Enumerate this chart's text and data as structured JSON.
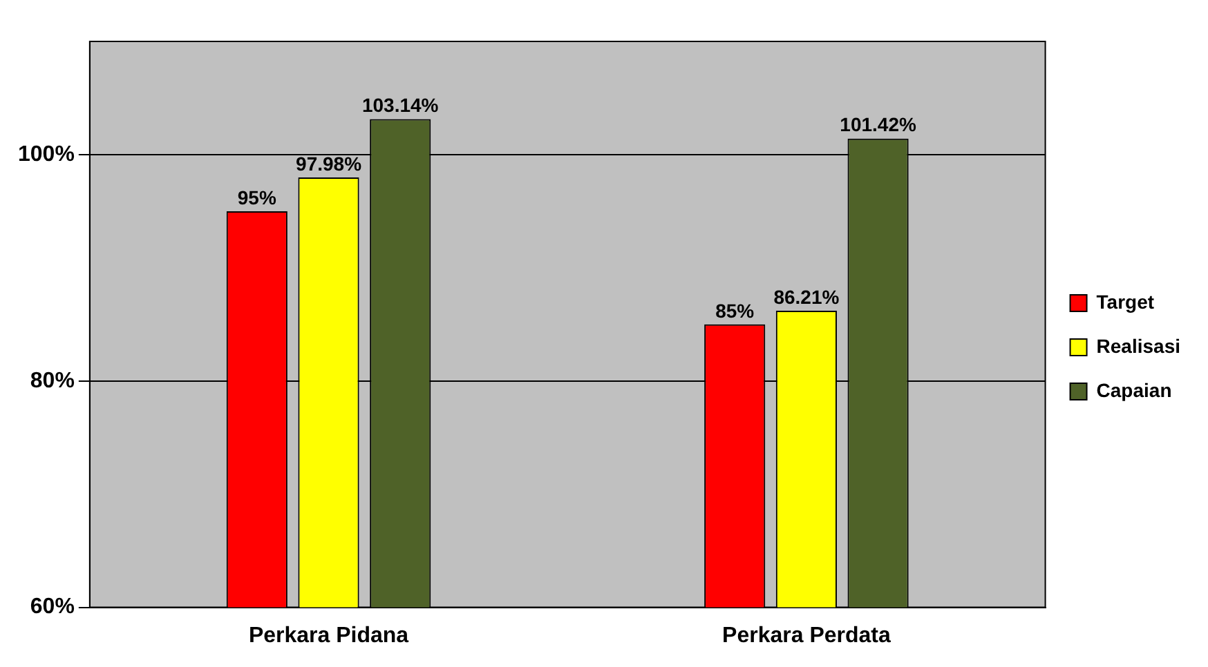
{
  "chart_data": {
    "type": "bar",
    "categories": [
      "Perkara Pidana",
      "Perkara Perdata"
    ],
    "series": [
      {
        "name": "Target",
        "color": "#ff0000",
        "values": [
          95,
          85
        ],
        "value_labels": [
          "95%",
          "85%"
        ]
      },
      {
        "name": "Realisasi",
        "color": "#ffff00",
        "values": [
          97.98,
          86.21
        ],
        "value_labels": [
          "97.98%",
          "86.21%"
        ]
      },
      {
        "name": "Capaian",
        "color": "#4f6228",
        "values": [
          103.14,
          101.42
        ],
        "value_labels": [
          "103.14%",
          "101.42%"
        ]
      }
    ],
    "ylim": [
      60,
      110
    ],
    "yticks": [
      {
        "value": 60,
        "label": "60%"
      },
      {
        "value": 80,
        "label": "80%"
      },
      {
        "value": 100,
        "label": "100%"
      }
    ],
    "grid": "y",
    "legend": "right"
  }
}
